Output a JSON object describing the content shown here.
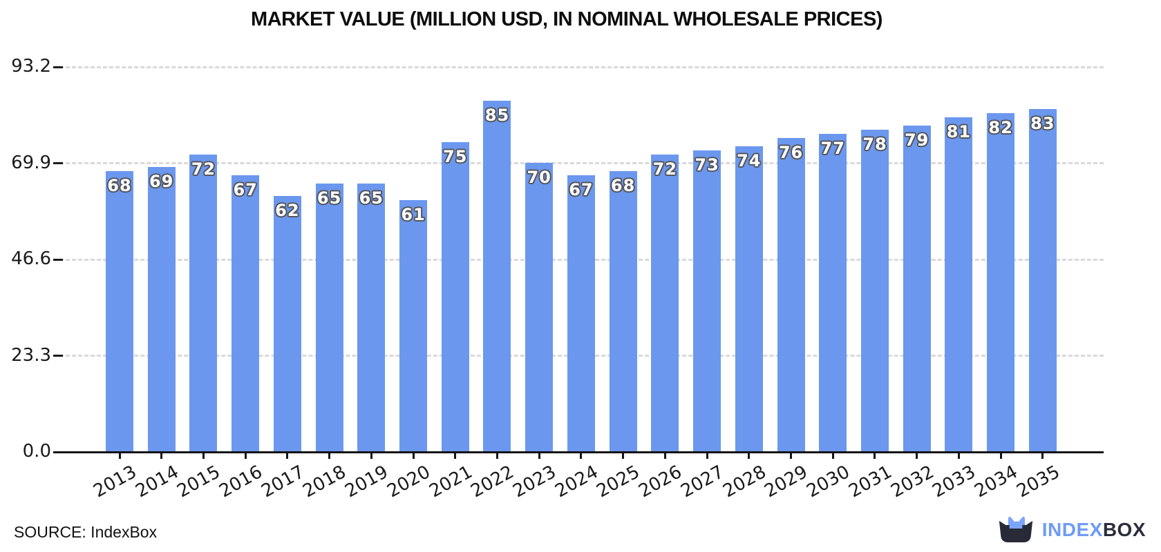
{
  "title": "MARKET VALUE (MILLION USD, IN NOMINAL WHOLESALE PRICES)",
  "source": {
    "label": "SOURCE: IndexBox"
  },
  "logo": {
    "text_primary": "INDEX",
    "text_secondary": "BOX",
    "color_primary": "#6F9BF5",
    "color_secondary": "#2B2D3A",
    "mark_dark": "#282A37",
    "mark_blue": "#7CA5F9"
  },
  "chart_data": {
    "type": "bar",
    "title": "MARKET VALUE (MILLION USD, IN NOMINAL WHOLESALE PRICES)",
    "categories": [
      "2013",
      "2014",
      "2015",
      "2016",
      "2017",
      "2018",
      "2019",
      "2020",
      "2021",
      "2022",
      "2023",
      "2024",
      "2025",
      "2026",
      "2027",
      "2028",
      "2029",
      "2030",
      "2031",
      "2032",
      "2033",
      "2034",
      "2035"
    ],
    "values": [
      68,
      69,
      72,
      67,
      62,
      65,
      65,
      61,
      75,
      85,
      70,
      67,
      68,
      72,
      73,
      74,
      76,
      77,
      78,
      79,
      81,
      82,
      83
    ],
    "xlabel": "",
    "ylabel": "",
    "ylim": [
      0,
      93.2
    ],
    "ytick_values": [
      0.0,
      23.3,
      46.6,
      69.9,
      93.2
    ],
    "ytick_labels": [
      "0.0",
      "23.3",
      "46.6",
      "69.9",
      "93.2"
    ],
    "grid": true,
    "grid_style": "dashed",
    "grid_color": "#d9d9d9",
    "bar_color": "#6B97EE",
    "bar_label_color": "#ffffff",
    "bar_label_outline": "#55565a",
    "axis_color": "#141414",
    "legend": "none"
  }
}
